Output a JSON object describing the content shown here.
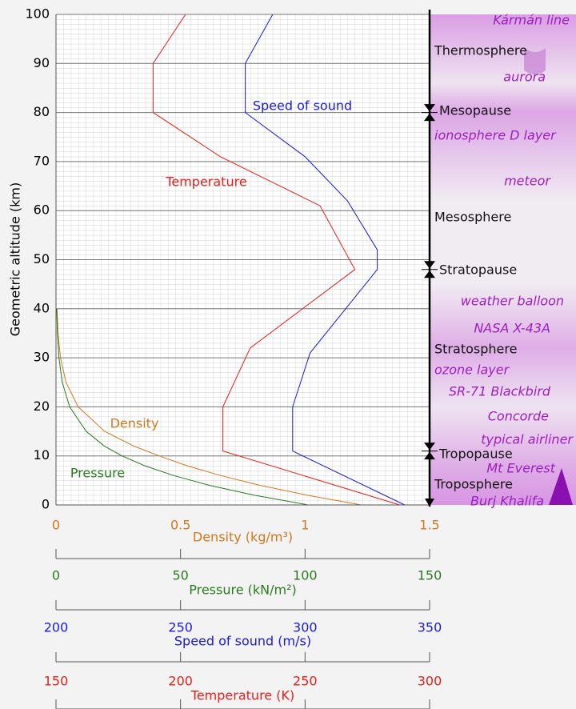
{
  "chart_data": {
    "type": "line",
    "ylabel": "Geometric altitude (km)",
    "ylim": [
      0,
      100
    ],
    "yticks": [
      0,
      10,
      20,
      30,
      40,
      50,
      60,
      70,
      80,
      90,
      100
    ],
    "grid": true,
    "series": [
      {
        "name": "Temperature",
        "color": "#e8201a",
        "xlabel": "Temperature (K)",
        "xlim": [
          150,
          300
        ],
        "xticks": [
          150,
          200,
          250,
          300
        ],
        "altitude": [
          0,
          11,
          20,
          32,
          48,
          61,
          71,
          80,
          90,
          100
        ],
        "values": [
          288,
          217,
          217,
          228,
          270,
          256,
          216,
          189,
          189,
          202
        ]
      },
      {
        "name": "Speed of sound",
        "color": "#1a1ae0",
        "xlabel": "Speed of sound (m/s)",
        "xlim": [
          200,
          350
        ],
        "xticks": [
          200,
          250,
          300,
          350
        ],
        "altitude": [
          0,
          11,
          20,
          31,
          48,
          52,
          62,
          71,
          80,
          90,
          100
        ],
        "values": [
          340,
          295,
          295,
          302,
          329,
          329,
          317,
          300,
          276,
          276,
          287
        ]
      },
      {
        "name": "Density",
        "color": "#d2781e",
        "xlabel": "Density (kg/m³)",
        "xlim": [
          0,
          1.5
        ],
        "xticks": [
          0,
          0.5,
          1,
          1.5
        ],
        "altitude": [
          0,
          2,
          4,
          6,
          8,
          10,
          12,
          15,
          20,
          25,
          30,
          35,
          40
        ],
        "values": [
          1.225,
          1.007,
          0.819,
          0.66,
          0.526,
          0.414,
          0.312,
          0.195,
          0.089,
          0.04,
          0.018,
          0.008,
          0.004
        ]
      },
      {
        "name": "Pressure",
        "color": "#2a7a1e",
        "xlabel": "Pressure (kN/m²)",
        "xlim": [
          0,
          150
        ],
        "xticks": [
          0,
          50,
          100,
          150
        ],
        "altitude": [
          0,
          2,
          4,
          6,
          8,
          10,
          12,
          15,
          20,
          25,
          30,
          35,
          40
        ],
        "values": [
          101.3,
          79.5,
          61.6,
          47.2,
          35.6,
          26.5,
          19.4,
          12.1,
          5.5,
          2.5,
          1.2,
          0.57,
          0.29
        ]
      }
    ],
    "atmosphere_labels": [
      "Kármán line",
      "Thermosphere",
      "aurora",
      "Mesopause",
      "ionosphere D layer",
      "meteor",
      "Mesosphere",
      "Stratopause",
      "weather balloon",
      "NASA X-43A",
      "Stratosphere",
      "ozone layer",
      "SR-71 Blackbird",
      "Concorde",
      "typical airliner",
      "Tropopause",
      "Mt Everest",
      "Troposphere",
      "Burj Khalifa"
    ]
  }
}
